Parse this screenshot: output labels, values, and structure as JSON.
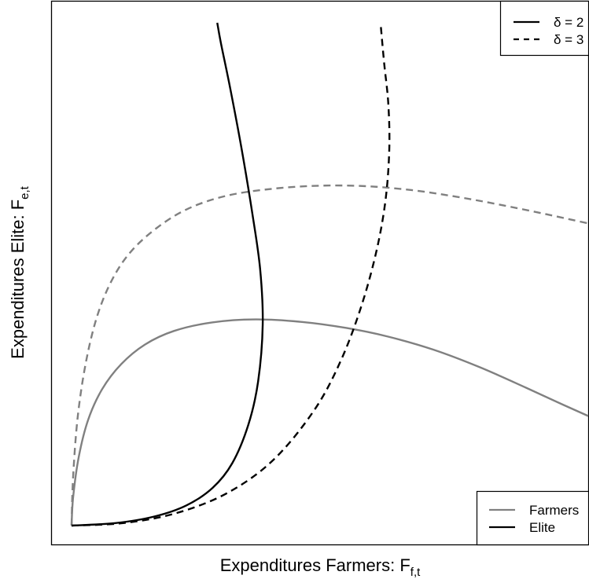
{
  "chart_data": {
    "type": "line",
    "title": "",
    "xlabel": {
      "main": "Expenditures Farmers: F",
      "sub": "f,t"
    },
    "ylabel": {
      "main": "Expenditures Elite: F",
      "sub": "e,t"
    },
    "xlim": [
      0,
      1
    ],
    "ylim": [
      0,
      1
    ],
    "ticks": false,
    "grid": false,
    "colors": {
      "farmers": "#808080",
      "elite": "#000000"
    },
    "legend_linestyle": {
      "placement": "top-right",
      "entries": [
        {
          "label": "δ = 2",
          "dash": "solid"
        },
        {
          "label": "δ = 3",
          "dash": "dashed"
        }
      ]
    },
    "legend_group": {
      "placement": "bottom-right",
      "entries": [
        {
          "label": "Farmers",
          "color": "#808080"
        },
        {
          "label": "Elite",
          "color": "#000000"
        }
      ]
    },
    "series": [
      {
        "group": "Farmers",
        "delta": 2,
        "color": "#808080",
        "dash": "solid",
        "points": [
          [
            0.0,
            0.0
          ],
          [
            0.003,
            0.056
          ],
          [
            0.014,
            0.137
          ],
          [
            0.032,
            0.21
          ],
          [
            0.059,
            0.271
          ],
          [
            0.096,
            0.321
          ],
          [
            0.142,
            0.36
          ],
          [
            0.198,
            0.387
          ],
          [
            0.272,
            0.404
          ],
          [
            0.356,
            0.41
          ],
          [
            0.446,
            0.405
          ],
          [
            0.532,
            0.393
          ],
          [
            0.612,
            0.376
          ],
          [
            0.7,
            0.35
          ],
          [
            0.79,
            0.315
          ],
          [
            0.88,
            0.274
          ],
          [
            0.952,
            0.24
          ],
          [
            1.0,
            0.218
          ]
        ]
      },
      {
        "group": "Farmers",
        "delta": 3,
        "color": "#808080",
        "dash": "dashed",
        "points": [
          [
            0.0,
            0.0
          ],
          [
            0.003,
            0.097
          ],
          [
            0.012,
            0.217
          ],
          [
            0.028,
            0.326
          ],
          [
            0.05,
            0.418
          ],
          [
            0.079,
            0.49
          ],
          [
            0.115,
            0.545
          ],
          [
            0.165,
            0.592
          ],
          [
            0.225,
            0.63
          ],
          [
            0.3,
            0.656
          ],
          [
            0.39,
            0.67
          ],
          [
            0.48,
            0.676
          ],
          [
            0.57,
            0.675
          ],
          [
            0.66,
            0.667
          ],
          [
            0.745,
            0.654
          ],
          [
            0.83,
            0.638
          ],
          [
            0.92,
            0.619
          ],
          [
            1.0,
            0.601
          ]
        ]
      },
      {
        "group": "Elite",
        "delta": 2,
        "color": "#000000",
        "dash": "solid",
        "points": [
          [
            0.0,
            0.0
          ],
          [
            0.085,
            0.005
          ],
          [
            0.16,
            0.018
          ],
          [
            0.222,
            0.04
          ],
          [
            0.273,
            0.075
          ],
          [
            0.311,
            0.124
          ],
          [
            0.342,
            0.2
          ],
          [
            0.361,
            0.286
          ],
          [
            0.37,
            0.4
          ],
          [
            0.365,
            0.51
          ],
          [
            0.35,
            0.62
          ],
          [
            0.329,
            0.75
          ],
          [
            0.307,
            0.87
          ],
          [
            0.289,
            0.96
          ],
          [
            0.282,
            1.0
          ]
        ]
      },
      {
        "group": "Elite",
        "delta": 3,
        "color": "#000000",
        "dash": "dashed",
        "points": [
          [
            0.0,
            0.0
          ],
          [
            0.1,
            0.005
          ],
          [
            0.2,
            0.024
          ],
          [
            0.3,
            0.064
          ],
          [
            0.39,
            0.13
          ],
          [
            0.47,
            0.23
          ],
          [
            0.522,
            0.33
          ],
          [
            0.562,
            0.44
          ],
          [
            0.591,
            0.55
          ],
          [
            0.608,
            0.65
          ],
          [
            0.615,
            0.75
          ],
          [
            0.613,
            0.84
          ],
          [
            0.605,
            0.92
          ],
          [
            0.598,
            1.0
          ]
        ]
      }
    ]
  }
}
